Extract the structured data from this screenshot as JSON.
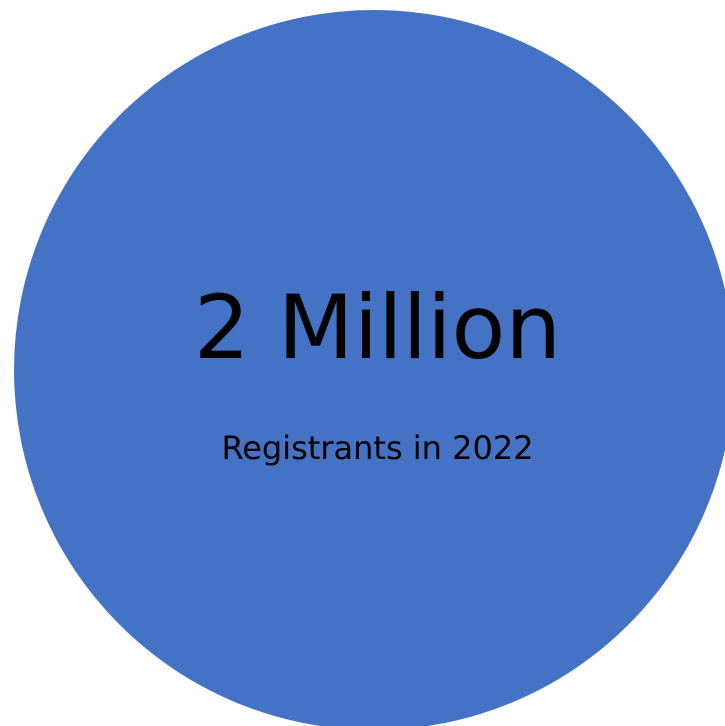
{
  "circle": {
    "color": "#4472C4"
  },
  "stat": {
    "value": "2 Million",
    "caption": "Registrants in 2022"
  }
}
